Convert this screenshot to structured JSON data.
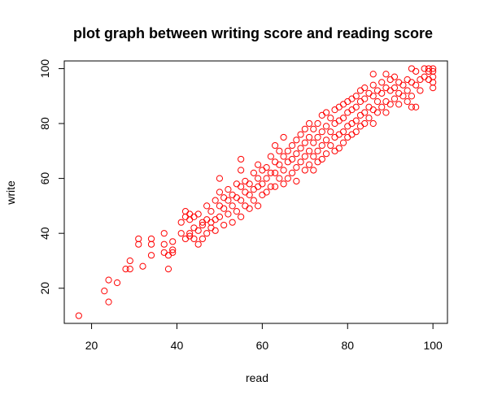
{
  "chart_data": {
    "type": "scatter",
    "title": "plot graph between writing score and reading score",
    "xlabel": "read",
    "ylabel": "write",
    "xlim": [
      13.6,
      103.4
    ],
    "ylim": [
      7.2,
      102.8
    ],
    "xticks": [
      20,
      40,
      60,
      80,
      100
    ],
    "yticks": [
      20,
      40,
      60,
      80,
      100
    ],
    "grid": false,
    "legend": "none",
    "point_color": "#ff0000",
    "point_shape": "open-circle",
    "points": [
      [
        17,
        10
      ],
      [
        23,
        19
      ],
      [
        24,
        23
      ],
      [
        24,
        15
      ],
      [
        26,
        22
      ],
      [
        28,
        27
      ],
      [
        29,
        27
      ],
      [
        29,
        30
      ],
      [
        31,
        36
      ],
      [
        31,
        38
      ],
      [
        32,
        28
      ],
      [
        34,
        36
      ],
      [
        34,
        38
      ],
      [
        34,
        32
      ],
      [
        37,
        40
      ],
      [
        37,
        36
      ],
      [
        37,
        33
      ],
      [
        38,
        32
      ],
      [
        38,
        27
      ],
      [
        39,
        37
      ],
      [
        39,
        34
      ],
      [
        39,
        33
      ],
      [
        41,
        44
      ],
      [
        41,
        40
      ],
      [
        42,
        48
      ],
      [
        42,
        46
      ],
      [
        42,
        38
      ],
      [
        43,
        47
      ],
      [
        43,
        45
      ],
      [
        43,
        40
      ],
      [
        43,
        39
      ],
      [
        44,
        46
      ],
      [
        44,
        42
      ],
      [
        44,
        38
      ],
      [
        45,
        47
      ],
      [
        45,
        41
      ],
      [
        45,
        36
      ],
      [
        46,
        44
      ],
      [
        46,
        43
      ],
      [
        46,
        38
      ],
      [
        47,
        50
      ],
      [
        47,
        45
      ],
      [
        47,
        40
      ],
      [
        48,
        48
      ],
      [
        48,
        42
      ],
      [
        48,
        44
      ],
      [
        49,
        52
      ],
      [
        49,
        45
      ],
      [
        49,
        41
      ],
      [
        50,
        55
      ],
      [
        50,
        50
      ],
      [
        50,
        60
      ],
      [
        50,
        46
      ],
      [
        51,
        53
      ],
      [
        51,
        49
      ],
      [
        51,
        43
      ],
      [
        52,
        56
      ],
      [
        52,
        52
      ],
      [
        52,
        47
      ],
      [
        53,
        54
      ],
      [
        53,
        50
      ],
      [
        53,
        44
      ],
      [
        54,
        58
      ],
      [
        54,
        53
      ],
      [
        54,
        48
      ],
      [
        55,
        57
      ],
      [
        55,
        52
      ],
      [
        55,
        67
      ],
      [
        55,
        63
      ],
      [
        55,
        46
      ],
      [
        56,
        59
      ],
      [
        56,
        55
      ],
      [
        56,
        50
      ],
      [
        57,
        58
      ],
      [
        57,
        54
      ],
      [
        57,
        49
      ],
      [
        58,
        62
      ],
      [
        58,
        56
      ],
      [
        58,
        52
      ],
      [
        59,
        60
      ],
      [
        59,
        57
      ],
      [
        59,
        50
      ],
      [
        59,
        65
      ],
      [
        60,
        63
      ],
      [
        60,
        58
      ],
      [
        60,
        54
      ],
      [
        61,
        64
      ],
      [
        61,
        60
      ],
      [
        61,
        55
      ],
      [
        62,
        68
      ],
      [
        62,
        62
      ],
      [
        62,
        57
      ],
      [
        63,
        66
      ],
      [
        63,
        62
      ],
      [
        63,
        57
      ],
      [
        63,
        72
      ],
      [
        64,
        70
      ],
      [
        64,
        65
      ],
      [
        64,
        60
      ],
      [
        65,
        75
      ],
      [
        65,
        68
      ],
      [
        65,
        63
      ],
      [
        65,
        58
      ],
      [
        66,
        70
      ],
      [
        66,
        66
      ],
      [
        66,
        60
      ],
      [
        67,
        72
      ],
      [
        67,
        67
      ],
      [
        67,
        62
      ],
      [
        68,
        74
      ],
      [
        68,
        69
      ],
      [
        68,
        64
      ],
      [
        68,
        59
      ],
      [
        69,
        76
      ],
      [
        69,
        71
      ],
      [
        69,
        66
      ],
      [
        70,
        78
      ],
      [
        70,
        73
      ],
      [
        70,
        68
      ],
      [
        70,
        63
      ],
      [
        71,
        80
      ],
      [
        71,
        75
      ],
      [
        71,
        70
      ],
      [
        71,
        65
      ],
      [
        72,
        78
      ],
      [
        72,
        73
      ],
      [
        72,
        68
      ],
      [
        72,
        63
      ],
      [
        73,
        80
      ],
      [
        73,
        75
      ],
      [
        73,
        70
      ],
      [
        73,
        66
      ],
      [
        74,
        83
      ],
      [
        74,
        77
      ],
      [
        74,
        72
      ],
      [
        74,
        67
      ],
      [
        75,
        84
      ],
      [
        75,
        79
      ],
      [
        75,
        74
      ],
      [
        75,
        69
      ],
      [
        76,
        82
      ],
      [
        76,
        77
      ],
      [
        76,
        72
      ],
      [
        77,
        85
      ],
      [
        77,
        80
      ],
      [
        77,
        75
      ],
      [
        77,
        70
      ],
      [
        78,
        86
      ],
      [
        78,
        81
      ],
      [
        78,
        76
      ],
      [
        78,
        71
      ],
      [
        79,
        87
      ],
      [
        79,
        82
      ],
      [
        79,
        77
      ],
      [
        79,
        73
      ],
      [
        80,
        88
      ],
      [
        80,
        84
      ],
      [
        80,
        79
      ],
      [
        80,
        75
      ],
      [
        81,
        89
      ],
      [
        81,
        85
      ],
      [
        81,
        80
      ],
      [
        81,
        76
      ],
      [
        82,
        90
      ],
      [
        82,
        86
      ],
      [
        82,
        81
      ],
      [
        82,
        77
      ],
      [
        83,
        92
      ],
      [
        83,
        88
      ],
      [
        83,
        83
      ],
      [
        83,
        79
      ],
      [
        84,
        93
      ],
      [
        84,
        89
      ],
      [
        84,
        84
      ],
      [
        84,
        80
      ],
      [
        85,
        91
      ],
      [
        85,
        86
      ],
      [
        85,
        82
      ],
      [
        86,
        98
      ],
      [
        86,
        94
      ],
      [
        86,
        90
      ],
      [
        86,
        85
      ],
      [
        86,
        80
      ],
      [
        87,
        92
      ],
      [
        87,
        88
      ],
      [
        87,
        84
      ],
      [
        88,
        95
      ],
      [
        88,
        91
      ],
      [
        88,
        86
      ],
      [
        89,
        98
      ],
      [
        89,
        93
      ],
      [
        89,
        88
      ],
      [
        89,
        84
      ],
      [
        90,
        96
      ],
      [
        90,
        92
      ],
      [
        90,
        87
      ],
      [
        91,
        97
      ],
      [
        91,
        93
      ],
      [
        91,
        89
      ],
      [
        92,
        95
      ],
      [
        92,
        91
      ],
      [
        92,
        87
      ],
      [
        93,
        94
      ],
      [
        93,
        90
      ],
      [
        94,
        96
      ],
      [
        94,
        92
      ],
      [
        94,
        88
      ],
      [
        95,
        100
      ],
      [
        95,
        95
      ],
      [
        95,
        90
      ],
      [
        95,
        86
      ],
      [
        96,
        99
      ],
      [
        96,
        94
      ],
      [
        96,
        86
      ],
      [
        97,
        96
      ],
      [
        97,
        92
      ],
      [
        98,
        100
      ],
      [
        98,
        97
      ],
      [
        99,
        100
      ],
      [
        99,
        99
      ],
      [
        99,
        96
      ],
      [
        100,
        100
      ],
      [
        100,
        99
      ],
      [
        100,
        97
      ],
      [
        100,
        95
      ],
      [
        100,
        93
      ]
    ]
  }
}
